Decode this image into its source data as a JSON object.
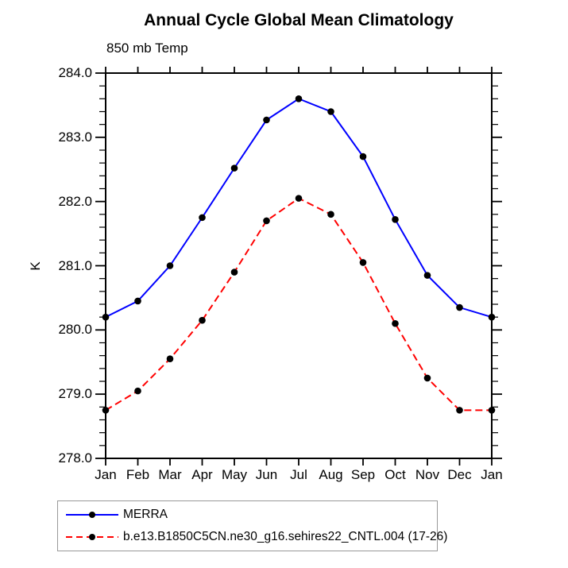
{
  "titles": {
    "main": "Annual Cycle Global Mean Climatology",
    "left": "850 mb Temp"
  },
  "y_axis": {
    "label": "K",
    "tick_labels": [
      "284.0",
      "283.0",
      "282.0",
      "281.0",
      "280.0",
      "279.0",
      "278.0"
    ]
  },
  "x_axis": {
    "tick_labels": [
      "Jan",
      "Feb",
      "Mar",
      "Apr",
      "May",
      "Jun",
      "Jul",
      "Aug",
      "Sep",
      "Oct",
      "Nov",
      "Dec",
      "Jan"
    ]
  },
  "legend": {
    "items": [
      {
        "label": "MERRA",
        "color": "#0000ff",
        "line_style": "solid",
        "marker": "black-filled-circle"
      },
      {
        "label": "b.e13.B1850C5CN.ne30_g16.sehires22_CNTL.004 (17-26)",
        "color": "#ff0000",
        "line_style": "dashed",
        "marker": "black-filled-circle"
      }
    ]
  },
  "colors": {
    "merra_line": "#0000ff",
    "model_line": "#ff0000",
    "marker": "#000000",
    "axis": "#000000",
    "legend_border": "#999999",
    "background": "#ffffff"
  },
  "chart_data": {
    "type": "line",
    "title": "Annual Cycle Global Mean Climatology",
    "subtitle": "850 mb Temp",
    "categories": [
      "Jan",
      "Feb",
      "Mar",
      "Apr",
      "May",
      "Jun",
      "Jul",
      "Aug",
      "Sep",
      "Oct",
      "Nov",
      "Dec",
      "Jan"
    ],
    "series": [
      {
        "name": "MERRA",
        "color": "#0000ff",
        "line_style": "solid",
        "marker": "black-filled-circle",
        "values": [
          280.2,
          280.45,
          281.0,
          281.75,
          282.52,
          283.27,
          283.6,
          283.4,
          282.7,
          281.72,
          280.85,
          280.35,
          280.2
        ]
      },
      {
        "name": "b.e13.B1850C5CN.ne30_g16.sehires22_CNTL.004 (17-26)",
        "color": "#ff0000",
        "line_style": "dashed",
        "marker": "black-filled-circle",
        "values": [
          278.75,
          279.05,
          279.55,
          280.15,
          280.9,
          281.7,
          282.05,
          281.8,
          281.05,
          280.1,
          279.25,
          278.75,
          278.75
        ]
      }
    ],
    "xlabel": "",
    "ylabel": "K",
    "ylim": [
      278.0,
      284.0
    ],
    "ytick_step": 1.0,
    "minor_ytick_step": 0.2,
    "grid": false,
    "legend_position": "bottom-left-box"
  }
}
